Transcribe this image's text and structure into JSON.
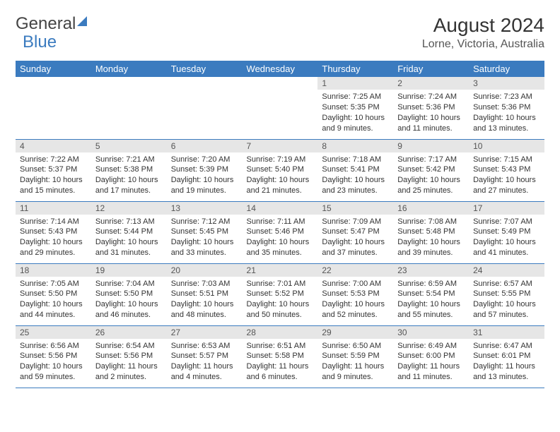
{
  "brand": {
    "word1": "General",
    "word2": "Blue"
  },
  "title": "August 2024",
  "location": "Lorne, Victoria, Australia",
  "styling": {
    "header_bg": "#3b7bbf",
    "header_fg": "#ffffff",
    "daynum_bg": "#e6e6e6",
    "row_border": "#3b7bbf",
    "page_bg": "#ffffff",
    "text_color": "#333333",
    "month_title_fontsize": 28,
    "location_fontsize": 16,
    "dayhead_fontsize": 13,
    "cell_fontsize": 11
  },
  "day_headers": [
    "Sunday",
    "Monday",
    "Tuesday",
    "Wednesday",
    "Thursday",
    "Friday",
    "Saturday"
  ],
  "weeks": [
    [
      {
        "n": "",
        "sr": "",
        "ss": "",
        "dl": ""
      },
      {
        "n": "",
        "sr": "",
        "ss": "",
        "dl": ""
      },
      {
        "n": "",
        "sr": "",
        "ss": "",
        "dl": ""
      },
      {
        "n": "",
        "sr": "",
        "ss": "",
        "dl": ""
      },
      {
        "n": "1",
        "sr": "Sunrise: 7:25 AM",
        "ss": "Sunset: 5:35 PM",
        "dl": "Daylight: 10 hours and 9 minutes."
      },
      {
        "n": "2",
        "sr": "Sunrise: 7:24 AM",
        "ss": "Sunset: 5:36 PM",
        "dl": "Daylight: 10 hours and 11 minutes."
      },
      {
        "n": "3",
        "sr": "Sunrise: 7:23 AM",
        "ss": "Sunset: 5:36 PM",
        "dl": "Daylight: 10 hours and 13 minutes."
      }
    ],
    [
      {
        "n": "4",
        "sr": "Sunrise: 7:22 AM",
        "ss": "Sunset: 5:37 PM",
        "dl": "Daylight: 10 hours and 15 minutes."
      },
      {
        "n": "5",
        "sr": "Sunrise: 7:21 AM",
        "ss": "Sunset: 5:38 PM",
        "dl": "Daylight: 10 hours and 17 minutes."
      },
      {
        "n": "6",
        "sr": "Sunrise: 7:20 AM",
        "ss": "Sunset: 5:39 PM",
        "dl": "Daylight: 10 hours and 19 minutes."
      },
      {
        "n": "7",
        "sr": "Sunrise: 7:19 AM",
        "ss": "Sunset: 5:40 PM",
        "dl": "Daylight: 10 hours and 21 minutes."
      },
      {
        "n": "8",
        "sr": "Sunrise: 7:18 AM",
        "ss": "Sunset: 5:41 PM",
        "dl": "Daylight: 10 hours and 23 minutes."
      },
      {
        "n": "9",
        "sr": "Sunrise: 7:17 AM",
        "ss": "Sunset: 5:42 PM",
        "dl": "Daylight: 10 hours and 25 minutes."
      },
      {
        "n": "10",
        "sr": "Sunrise: 7:15 AM",
        "ss": "Sunset: 5:43 PM",
        "dl": "Daylight: 10 hours and 27 minutes."
      }
    ],
    [
      {
        "n": "11",
        "sr": "Sunrise: 7:14 AM",
        "ss": "Sunset: 5:43 PM",
        "dl": "Daylight: 10 hours and 29 minutes."
      },
      {
        "n": "12",
        "sr": "Sunrise: 7:13 AM",
        "ss": "Sunset: 5:44 PM",
        "dl": "Daylight: 10 hours and 31 minutes."
      },
      {
        "n": "13",
        "sr": "Sunrise: 7:12 AM",
        "ss": "Sunset: 5:45 PM",
        "dl": "Daylight: 10 hours and 33 minutes."
      },
      {
        "n": "14",
        "sr": "Sunrise: 7:11 AM",
        "ss": "Sunset: 5:46 PM",
        "dl": "Daylight: 10 hours and 35 minutes."
      },
      {
        "n": "15",
        "sr": "Sunrise: 7:09 AM",
        "ss": "Sunset: 5:47 PM",
        "dl": "Daylight: 10 hours and 37 minutes."
      },
      {
        "n": "16",
        "sr": "Sunrise: 7:08 AM",
        "ss": "Sunset: 5:48 PM",
        "dl": "Daylight: 10 hours and 39 minutes."
      },
      {
        "n": "17",
        "sr": "Sunrise: 7:07 AM",
        "ss": "Sunset: 5:49 PM",
        "dl": "Daylight: 10 hours and 41 minutes."
      }
    ],
    [
      {
        "n": "18",
        "sr": "Sunrise: 7:05 AM",
        "ss": "Sunset: 5:50 PM",
        "dl": "Daylight: 10 hours and 44 minutes."
      },
      {
        "n": "19",
        "sr": "Sunrise: 7:04 AM",
        "ss": "Sunset: 5:50 PM",
        "dl": "Daylight: 10 hours and 46 minutes."
      },
      {
        "n": "20",
        "sr": "Sunrise: 7:03 AM",
        "ss": "Sunset: 5:51 PM",
        "dl": "Daylight: 10 hours and 48 minutes."
      },
      {
        "n": "21",
        "sr": "Sunrise: 7:01 AM",
        "ss": "Sunset: 5:52 PM",
        "dl": "Daylight: 10 hours and 50 minutes."
      },
      {
        "n": "22",
        "sr": "Sunrise: 7:00 AM",
        "ss": "Sunset: 5:53 PM",
        "dl": "Daylight: 10 hours and 52 minutes."
      },
      {
        "n": "23",
        "sr": "Sunrise: 6:59 AM",
        "ss": "Sunset: 5:54 PM",
        "dl": "Daylight: 10 hours and 55 minutes."
      },
      {
        "n": "24",
        "sr": "Sunrise: 6:57 AM",
        "ss": "Sunset: 5:55 PM",
        "dl": "Daylight: 10 hours and 57 minutes."
      }
    ],
    [
      {
        "n": "25",
        "sr": "Sunrise: 6:56 AM",
        "ss": "Sunset: 5:56 PM",
        "dl": "Daylight: 10 hours and 59 minutes."
      },
      {
        "n": "26",
        "sr": "Sunrise: 6:54 AM",
        "ss": "Sunset: 5:56 PM",
        "dl": "Daylight: 11 hours and 2 minutes."
      },
      {
        "n": "27",
        "sr": "Sunrise: 6:53 AM",
        "ss": "Sunset: 5:57 PM",
        "dl": "Daylight: 11 hours and 4 minutes."
      },
      {
        "n": "28",
        "sr": "Sunrise: 6:51 AM",
        "ss": "Sunset: 5:58 PM",
        "dl": "Daylight: 11 hours and 6 minutes."
      },
      {
        "n": "29",
        "sr": "Sunrise: 6:50 AM",
        "ss": "Sunset: 5:59 PM",
        "dl": "Daylight: 11 hours and 9 minutes."
      },
      {
        "n": "30",
        "sr": "Sunrise: 6:49 AM",
        "ss": "Sunset: 6:00 PM",
        "dl": "Daylight: 11 hours and 11 minutes."
      },
      {
        "n": "31",
        "sr": "Sunrise: 6:47 AM",
        "ss": "Sunset: 6:01 PM",
        "dl": "Daylight: 11 hours and 13 minutes."
      }
    ]
  ]
}
